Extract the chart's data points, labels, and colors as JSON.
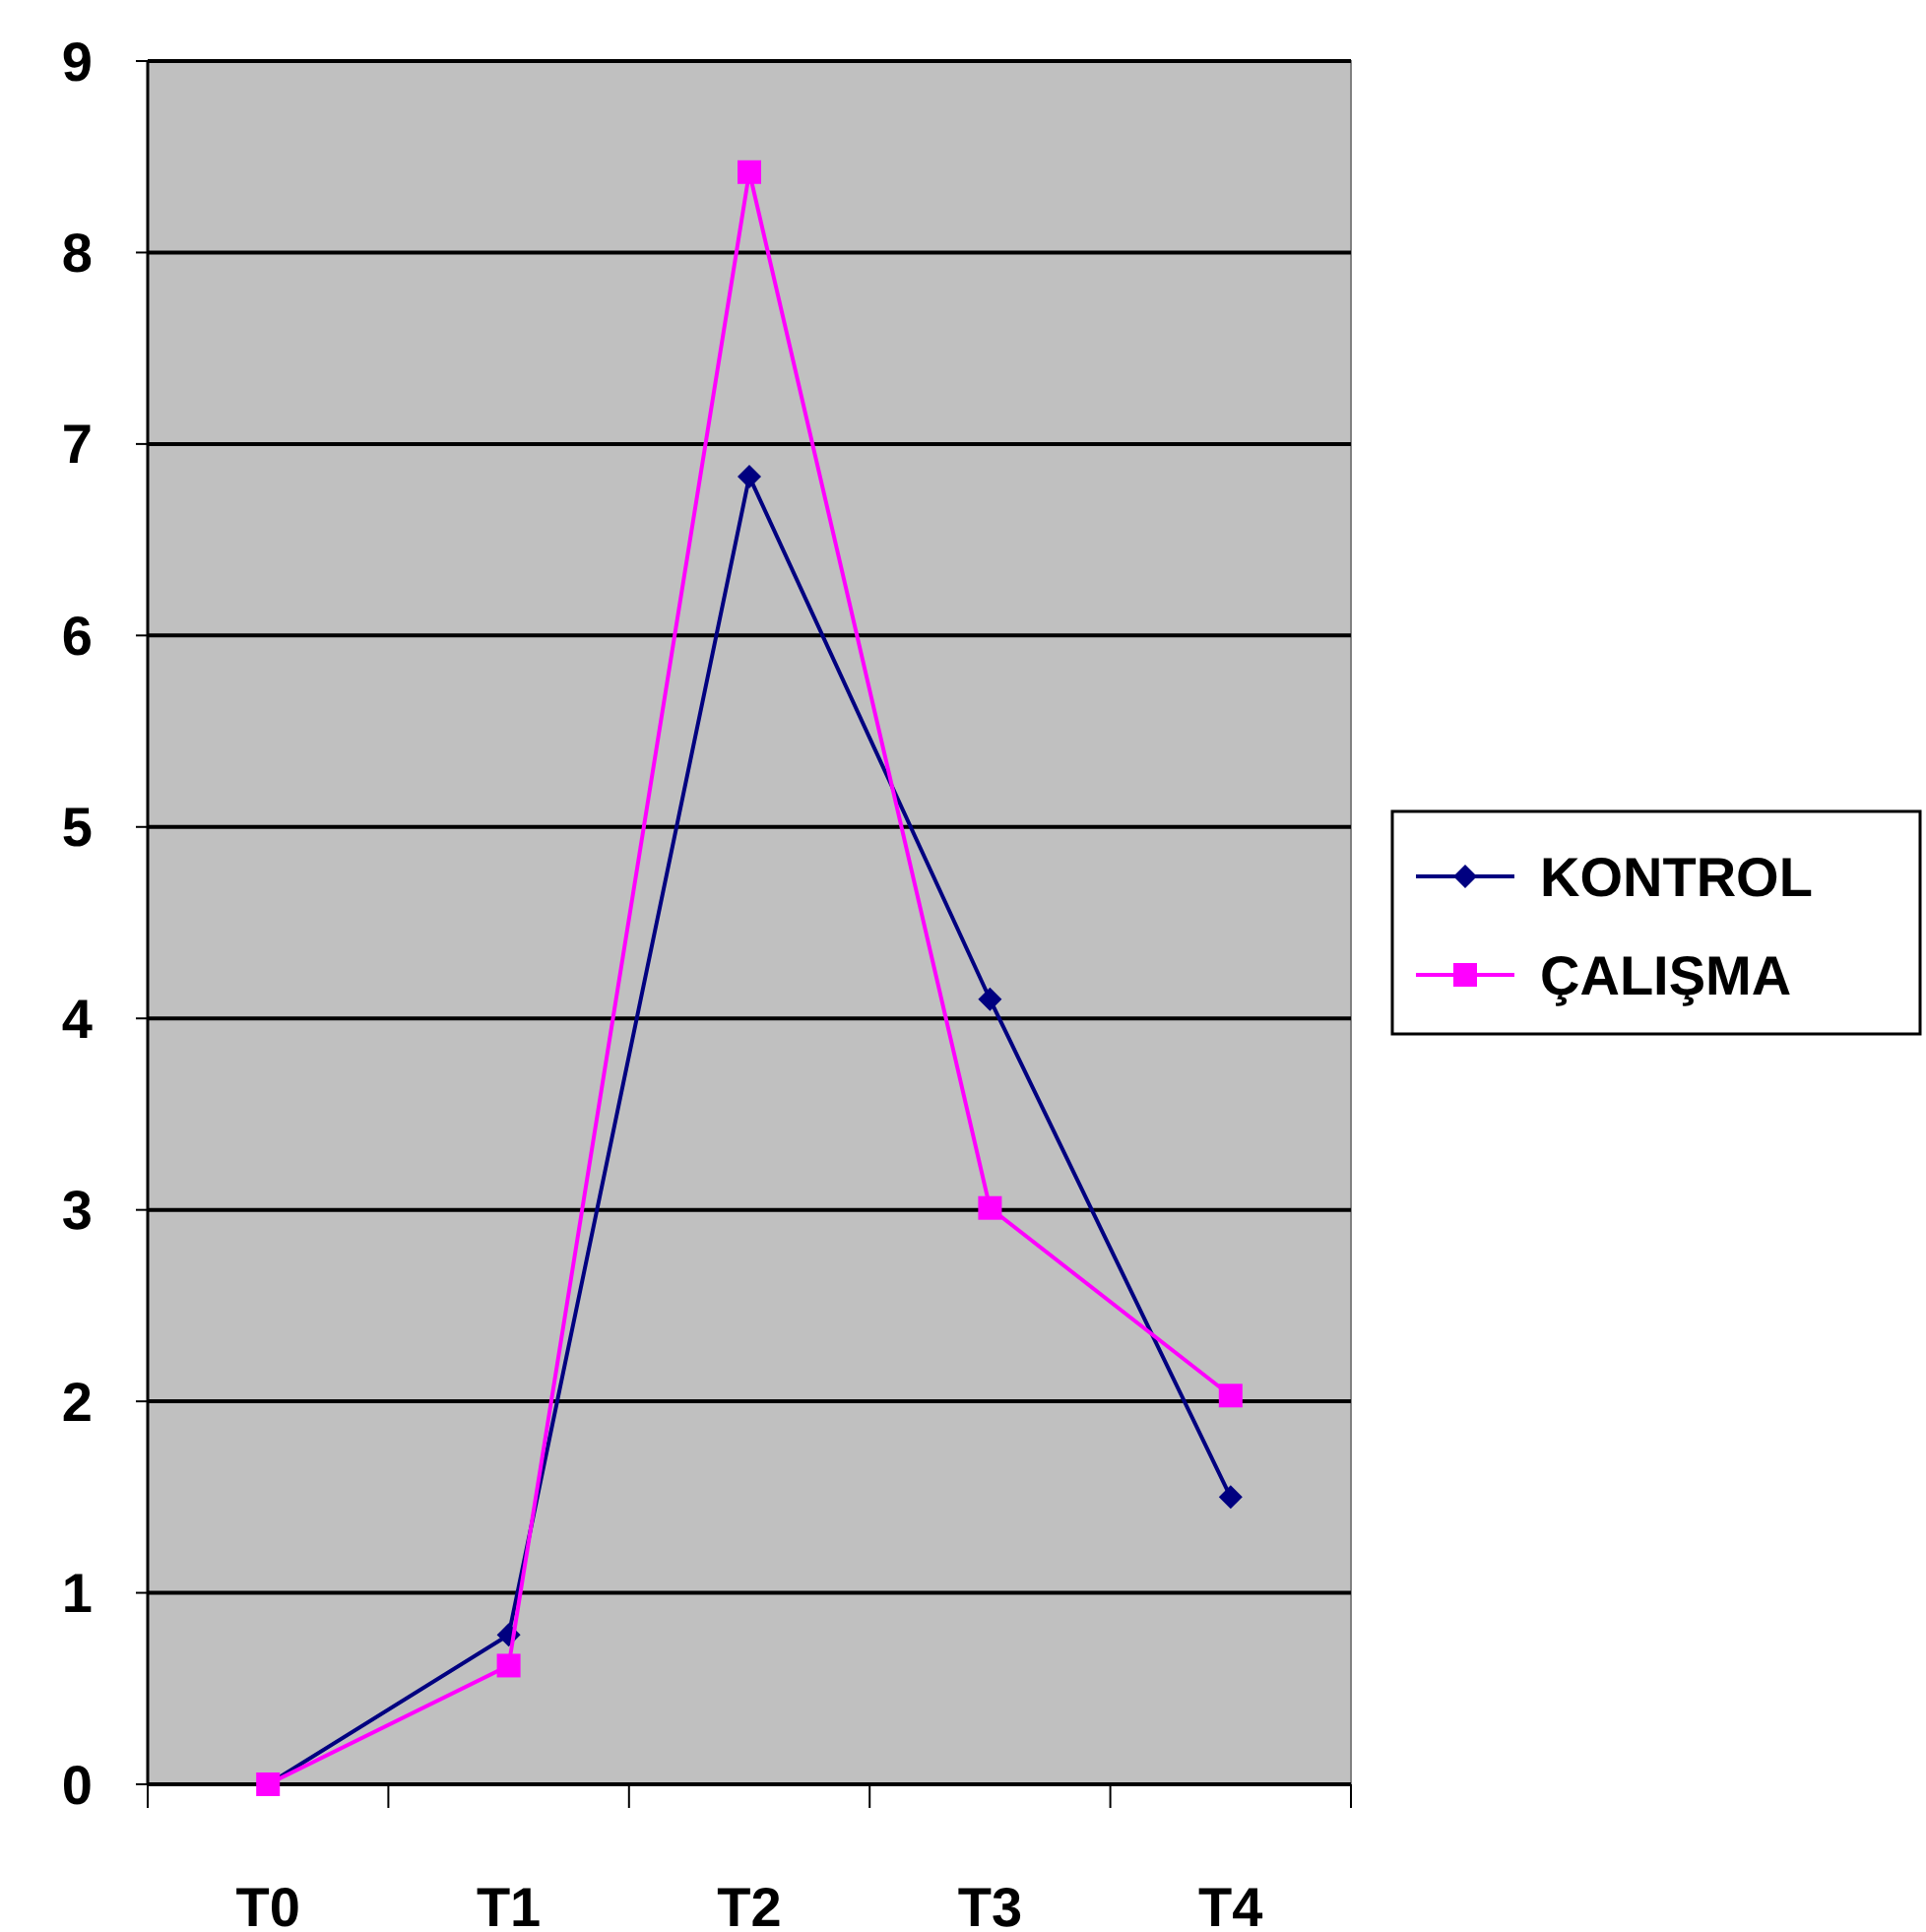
{
  "chart_data": {
    "type": "line",
    "categories": [
      "T0",
      "T1",
      "T2",
      "T3",
      "T4"
    ],
    "series": [
      {
        "name": "KONTROL",
        "color": "#000080",
        "marker": "diamond",
        "values": [
          0,
          0.78,
          6.83,
          4.1,
          1.5
        ]
      },
      {
        "name": "ÇALIŞMA",
        "color": "#ff00ff",
        "marker": "square",
        "values": [
          0,
          0.62,
          8.42,
          3.01,
          2.03
        ]
      }
    ],
    "ylim": [
      0,
      9
    ],
    "yticks": [
      0,
      1,
      2,
      3,
      4,
      5,
      6,
      7,
      8,
      9
    ],
    "grid": "y",
    "legend": "right",
    "line_style": "solid"
  }
}
